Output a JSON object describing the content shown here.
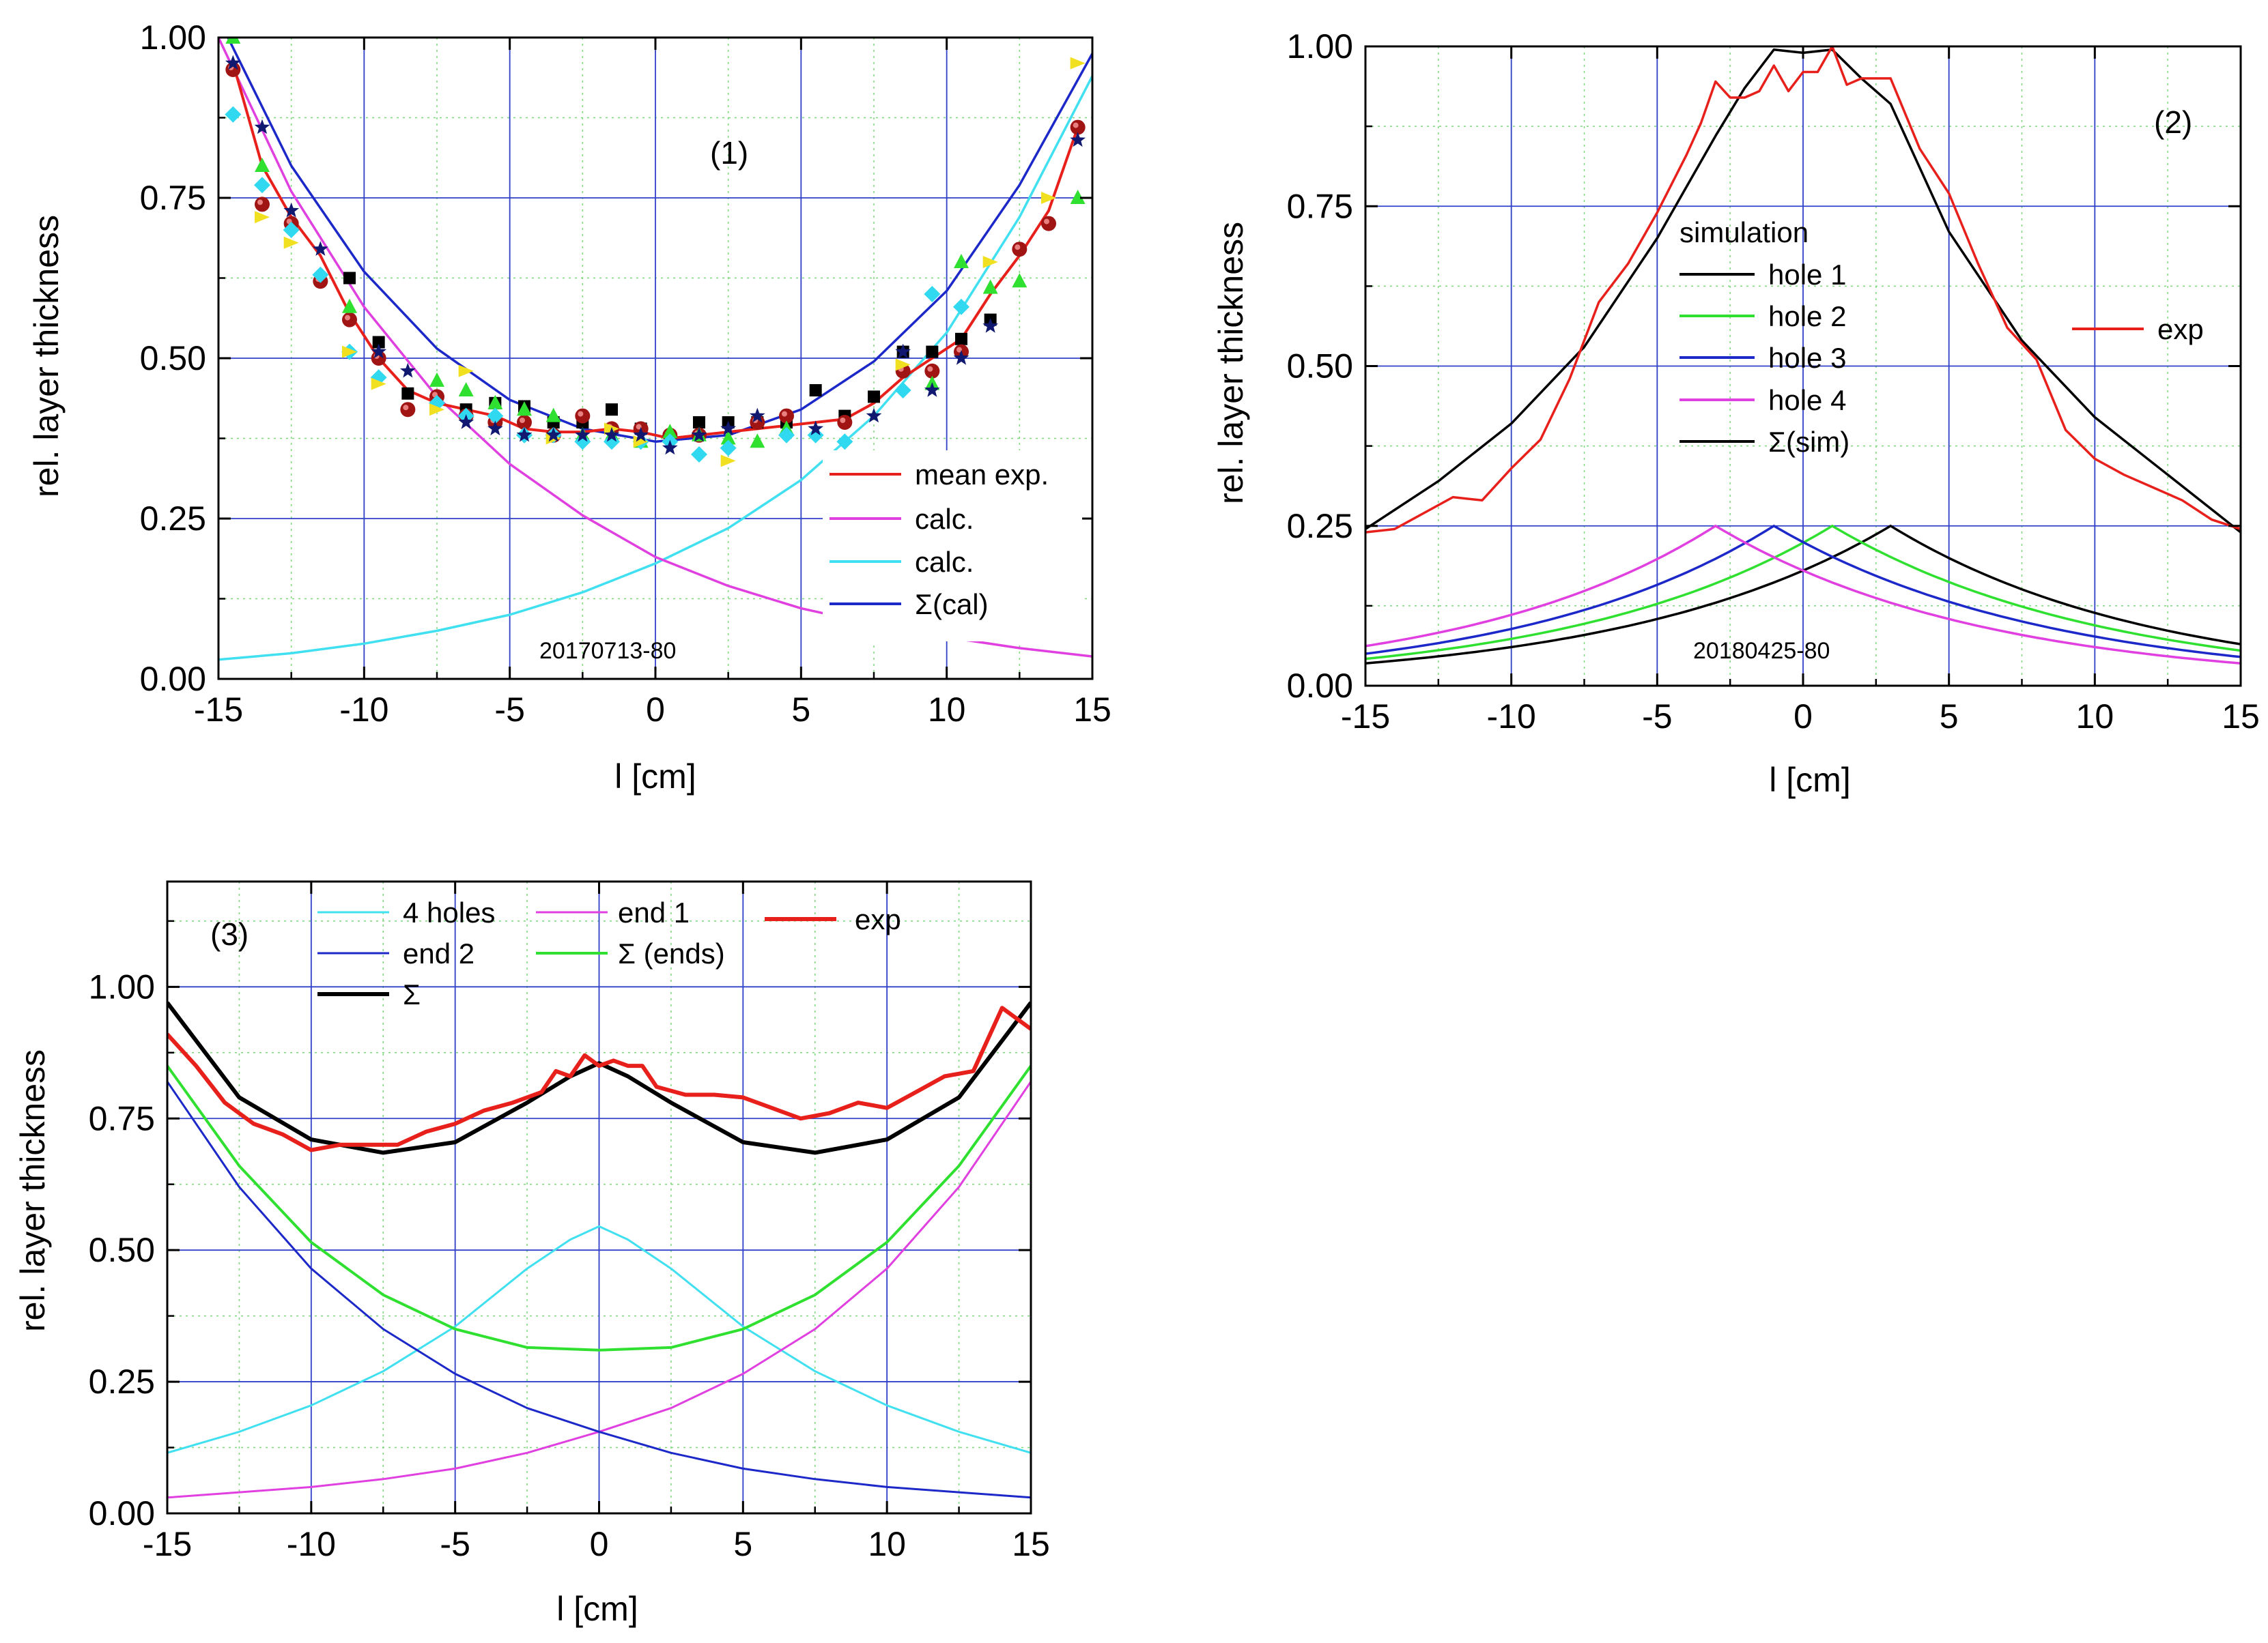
{
  "chart_data": [
    {
      "type": "scatter",
      "panel_label": "(1)",
      "xlabel": "l [cm]",
      "ylabel": "rel. layer thickness",
      "xlim": [
        -15,
        15
      ],
      "ylim": [
        0,
        1
      ],
      "xticks": [
        "-15",
        "-10",
        "-5",
        "0",
        "5",
        "10",
        "15"
      ],
      "yticks": [
        "0.00",
        "0.25",
        "0.50",
        "0.75",
        "1.00"
      ],
      "annotation": "20170713-80",
      "colors": {
        "mean": "#e8201c",
        "calc1": "#e040e0",
        "calc2": "#40e0f0",
        "sum": "#1c28c8"
      },
      "series": [
        {
          "name": "mean exp.",
          "style": "line",
          "color": "#e8201c",
          "x": [
            -14.5,
            -13.5,
            -12.5,
            -11.5,
            -10.5,
            -9.5,
            -8.5,
            -7.5,
            -6.5,
            -5.5,
            -4.5,
            -3.5,
            -2.5,
            -1.5,
            -0.5,
            0.5,
            1.5,
            2.5,
            3.5,
            4.5,
            5.5,
            6.5,
            7.5,
            8.5,
            9.5,
            10.5,
            11.5,
            12.5,
            13.5,
            14.5
          ],
          "y": [
            0.96,
            0.8,
            0.72,
            0.66,
            0.57,
            0.5,
            0.45,
            0.43,
            0.42,
            0.41,
            0.39,
            0.385,
            0.385,
            0.39,
            0.385,
            0.375,
            0.38,
            0.385,
            0.39,
            0.395,
            0.4,
            0.405,
            0.43,
            0.47,
            0.5,
            0.53,
            0.6,
            0.66,
            0.73,
            0.86
          ]
        },
        {
          "name": "calc.",
          "style": "line",
          "color": "#e040e0",
          "x": [
            -15,
            -12.5,
            -10,
            -7.5,
            -5,
            -2.5,
            0,
            2.5,
            5,
            7.5,
            10,
            12.5,
            15
          ],
          "y": [
            1.0,
            0.76,
            0.58,
            0.44,
            0.335,
            0.255,
            0.19,
            0.145,
            0.11,
            0.085,
            0.065,
            0.048,
            0.035
          ]
        },
        {
          "name": "calc.",
          "style": "line",
          "color": "#40e0f0",
          "x": [
            -15,
            -12.5,
            -10,
            -7.5,
            -5,
            -2.5,
            0,
            2.5,
            5,
            7.5,
            10,
            12.5,
            15
          ],
          "y": [
            0.03,
            0.04,
            0.055,
            0.075,
            0.1,
            0.135,
            0.18,
            0.235,
            0.31,
            0.41,
            0.54,
            0.72,
            0.94
          ]
        },
        {
          "name": "Σ(cal)",
          "style": "line",
          "color": "#1c28c8",
          "x": [
            -15,
            -12.5,
            -10,
            -7.5,
            -5,
            -2.5,
            0,
            2.5,
            5,
            7.5,
            10,
            12.5,
            15
          ],
          "y": [
            1.03,
            0.8,
            0.635,
            0.515,
            0.435,
            0.39,
            0.37,
            0.38,
            0.42,
            0.495,
            0.605,
            0.77,
            0.975
          ]
        },
        {
          "name": "data-squares",
          "style": "square",
          "color": "#000000",
          "x": [
            -10.5,
            -9.5,
            -8.5,
            -6.5,
            -5.5,
            -4.5,
            -3.5,
            -2.5,
            -1.5,
            -0.5,
            1.5,
            2.5,
            3.5,
            4.5,
            5.5,
            6.5,
            7.5,
            8.5,
            9.5,
            10.5,
            11.5
          ],
          "y": [
            0.625,
            0.525,
            0.445,
            0.42,
            0.43,
            0.425,
            0.4,
            0.4,
            0.42,
            0.39,
            0.4,
            0.4,
            0.4,
            0.4,
            0.45,
            0.41,
            0.44,
            0.51,
            0.51,
            0.53,
            0.56
          ]
        },
        {
          "name": "data-spheres",
          "style": "ball",
          "color": "#a01414",
          "x": [
            -14.5,
            -13.5,
            -12.5,
            -11.5,
            -10.5,
            -9.5,
            -8.5,
            -7.5,
            -6.5,
            -5.5,
            -4.5,
            -3.5,
            -2.5,
            -1.5,
            -0.5,
            0.5,
            1.5,
            3.5,
            4.5,
            6.5,
            8.5,
            9.5,
            10.5,
            12.5,
            13.5,
            14.5
          ],
          "y": [
            0.95,
            0.74,
            0.71,
            0.62,
            0.56,
            0.5,
            0.42,
            0.44,
            0.41,
            0.4,
            0.4,
            0.38,
            0.41,
            0.39,
            0.39,
            0.38,
            0.38,
            0.4,
            0.41,
            0.4,
            0.48,
            0.48,
            0.51,
            0.67,
            0.71,
            0.86
          ]
        },
        {
          "name": "data-triangles",
          "style": "triangle",
          "color": "#30e030",
          "x": [
            -14.5,
            -13.5,
            -10.5,
            -7.5,
            -6.5,
            -5.5,
            -4.5,
            -3.5,
            -2.5,
            -1.5,
            -0.5,
            0.5,
            1.5,
            2.5,
            3.5,
            4.5,
            9.5,
            10.5,
            11.5,
            12.5,
            14.5
          ],
          "y": [
            1.0,
            0.8,
            0.58,
            0.465,
            0.45,
            0.43,
            0.42,
            0.41,
            0.38,
            0.38,
            0.37,
            0.385,
            0.38,
            0.375,
            0.37,
            0.39,
            0.46,
            0.65,
            0.61,
            0.62,
            0.75
          ]
        },
        {
          "name": "data-diamonds",
          "style": "diamond",
          "color": "#30d8f0",
          "x": [
            -14.5,
            -13.5,
            -12.5,
            -11.5,
            -10.5,
            -9.5,
            -7.5,
            -6.5,
            -5.5,
            -4.5,
            -3.5,
            -2.5,
            -1.5,
            -0.5,
            0.5,
            1.5,
            2.5,
            4.5,
            5.5,
            6.5,
            8.5,
            9.5,
            10.5
          ],
          "y": [
            0.88,
            0.77,
            0.7,
            0.63,
            0.51,
            0.47,
            0.43,
            0.41,
            0.41,
            0.38,
            0.38,
            0.37,
            0.37,
            0.37,
            0.37,
            0.35,
            0.36,
            0.38,
            0.38,
            0.37,
            0.45,
            0.6,
            0.58
          ]
        },
        {
          "name": "data-yellow-triangles",
          "style": "ytriangle",
          "color": "#f0e020",
          "x": [
            -13.5,
            -12.5,
            -10.5,
            -9.5,
            -7.5,
            -6.5,
            -3.5,
            -1.5,
            -0.5,
            2.5,
            8.5,
            11.5,
            13.5,
            14.5
          ],
          "y": [
            0.72,
            0.68,
            0.51,
            0.46,
            0.42,
            0.48,
            0.375,
            0.39,
            0.37,
            0.34,
            0.49,
            0.65,
            0.75,
            0.96
          ]
        },
        {
          "name": "data-stars",
          "style": "star",
          "color": "#101870",
          "x": [
            -14.5,
            -13.5,
            -12.5,
            -11.5,
            -9.5,
            -8.5,
            -6.5,
            -5.5,
            -4.5,
            -3.5,
            -2.5,
            -1.5,
            -0.5,
            0.5,
            1.5,
            2.5,
            3.5,
            5.5,
            7.5,
            8.5,
            9.5,
            10.5,
            11.5,
            14.5
          ],
          "y": [
            0.96,
            0.86,
            0.73,
            0.67,
            0.51,
            0.48,
            0.4,
            0.39,
            0.38,
            0.38,
            0.38,
            0.38,
            0.38,
            0.36,
            0.38,
            0.39,
            0.41,
            0.39,
            0.41,
            0.51,
            0.45,
            0.5,
            0.55,
            0.84
          ]
        }
      ],
      "legend": [
        {
          "label": "mean exp.",
          "color": "#e8201c"
        },
        {
          "label": "calc.",
          "color": "#e040e0"
        },
        {
          "label": "calc.",
          "color": "#40e0f0"
        },
        {
          "label": "Σ(cal)",
          "color": "#1c28c8"
        }
      ]
    },
    {
      "type": "line",
      "panel_label": "(2)",
      "xlabel": "l [cm]",
      "ylabel": "rel. layer thickness",
      "xlim": [
        -15,
        15
      ],
      "ylim": [
        0,
        1
      ],
      "xticks": [
        "-15",
        "-10",
        "-5",
        "0",
        "5",
        "10",
        "15"
      ],
      "yticks": [
        "0.00",
        "0.25",
        "0.50",
        "0.75",
        "1.00"
      ],
      "annotation": "20180425-80",
      "legend_title": "simulation",
      "series": [
        {
          "name": "hole 1",
          "color": "#000000",
          "peak_x": 3,
          "peak_y": 0.25,
          "ends": [
            0.035,
            0.065
          ]
        },
        {
          "name": "hole 2",
          "color": "#30e030",
          "peak_x": 1,
          "peak_y": 0.25,
          "ends": [
            0.042,
            0.055
          ]
        },
        {
          "name": "hole 3",
          "color": "#1c28c8",
          "peak_x": -1,
          "peak_y": 0.25,
          "ends": [
            0.05,
            0.045
          ]
        },
        {
          "name": "hole 4",
          "color": "#e040e0",
          "peak_x": -3,
          "peak_y": 0.25,
          "ends": [
            0.062,
            0.035
          ]
        },
        {
          "name": "Σ(sim)",
          "color": "#000000",
          "x": [
            -15,
            -12.5,
            -10,
            -7.5,
            -5,
            -3,
            -2,
            -1,
            0,
            1,
            2,
            3,
            5,
            7.5,
            10,
            12.5,
            15
          ],
          "y": [
            0.245,
            0.32,
            0.41,
            0.53,
            0.7,
            0.86,
            0.935,
            0.995,
            0.99,
            0.995,
            0.95,
            0.91,
            0.71,
            0.54,
            0.42,
            0.33,
            0.24
          ]
        },
        {
          "name": "exp",
          "color": "#e8201c",
          "x": [
            -15,
            -14,
            -13,
            -12,
            -11,
            -10,
            -9,
            -8,
            -7.5,
            -7,
            -6,
            -5,
            -4,
            -3.5,
            -3,
            -2.5,
            -2,
            -1.5,
            -1,
            -0.5,
            0,
            0.5,
            1,
            1.5,
            2,
            2.5,
            3,
            4,
            5,
            6,
            7,
            8,
            9,
            10,
            11,
            12,
            13,
            14,
            15
          ],
          "y": [
            0.24,
            0.245,
            0.27,
            0.295,
            0.29,
            0.34,
            0.385,
            0.48,
            0.54,
            0.6,
            0.66,
            0.74,
            0.83,
            0.88,
            0.945,
            0.92,
            0.92,
            0.93,
            0.97,
            0.93,
            0.96,
            0.96,
            1.0,
            0.94,
            0.95,
            0.95,
            0.95,
            0.84,
            0.77,
            0.66,
            0.56,
            0.51,
            0.4,
            0.355,
            0.33,
            0.31,
            0.29,
            0.26,
            0.245
          ]
        }
      ],
      "legend": [
        {
          "label": "hole 1",
          "color": "#000000"
        },
        {
          "label": "hole 2",
          "color": "#30e030"
        },
        {
          "label": "hole 3",
          "color": "#1c28c8"
        },
        {
          "label": "hole 4",
          "color": "#e040e0"
        },
        {
          "label": "Σ(sim)",
          "color": "#000000"
        }
      ],
      "legend_exp": {
        "label": "exp",
        "color": "#e8201c"
      }
    },
    {
      "type": "line",
      "panel_label": "(3)",
      "xlabel": "l [cm]",
      "ylabel": "rel. layer thickness",
      "xlim": [
        -15,
        15
      ],
      "ylim": [
        0,
        1.2
      ],
      "xticks": [
        "-15",
        "-10",
        "-5",
        "0",
        "5",
        "10",
        "15"
      ],
      "yticks": [
        "0.00",
        "0.25",
        "0.50",
        "0.75",
        "1.00"
      ],
      "series": [
        {
          "name": "4 holes",
          "color": "#40e0f0",
          "x": [
            -15,
            -12.5,
            -10,
            -7.5,
            -5,
            -2.5,
            -1,
            0,
            1,
            2.5,
            5,
            7.5,
            10,
            12.5,
            15
          ],
          "y": [
            0.115,
            0.155,
            0.205,
            0.27,
            0.355,
            0.465,
            0.52,
            0.545,
            0.52,
            0.465,
            0.355,
            0.27,
            0.205,
            0.155,
            0.115
          ]
        },
        {
          "name": "end 1",
          "color": "#e040e0",
          "x": [
            -15,
            -12.5,
            -10,
            -7.5,
            -5,
            -2.5,
            0,
            2.5,
            5,
            7.5,
            10,
            12.5,
            15
          ],
          "y": [
            0.03,
            0.04,
            0.05,
            0.065,
            0.085,
            0.115,
            0.155,
            0.2,
            0.265,
            0.35,
            0.465,
            0.62,
            0.82
          ]
        },
        {
          "name": "end 2",
          "color": "#1c28c8",
          "x": [
            -15,
            -12.5,
            -10,
            -7.5,
            -5,
            -2.5,
            0,
            2.5,
            5,
            7.5,
            10,
            12.5,
            15
          ],
          "y": [
            0.82,
            0.62,
            0.465,
            0.35,
            0.265,
            0.2,
            0.155,
            0.115,
            0.085,
            0.065,
            0.05,
            0.04,
            0.03
          ]
        },
        {
          "name": "Σ (ends)",
          "color": "#30e030",
          "x": [
            -15,
            -12.5,
            -10,
            -7.5,
            -5,
            -2.5,
            0,
            2.5,
            5,
            7.5,
            10,
            12.5,
            15
          ],
          "y": [
            0.85,
            0.66,
            0.515,
            0.415,
            0.35,
            0.315,
            0.31,
            0.315,
            0.35,
            0.415,
            0.515,
            0.66,
            0.85
          ]
        },
        {
          "name": "Σ",
          "color": "#000000",
          "x": [
            -15,
            -12.5,
            -10,
            -7.5,
            -5,
            -2.5,
            -1,
            0,
            1,
            2.5,
            5,
            7.5,
            10,
            12.5,
            15
          ],
          "y": [
            0.97,
            0.79,
            0.71,
            0.685,
            0.705,
            0.78,
            0.83,
            0.855,
            0.83,
            0.78,
            0.705,
            0.685,
            0.71,
            0.79,
            0.97
          ]
        },
        {
          "name": "exp",
          "color": "#e8201c",
          "x": [
            -15,
            -14,
            -13,
            -12,
            -11,
            -10,
            -9,
            -8,
            -7,
            -6,
            -5,
            -4,
            -3,
            -2,
            -1.5,
            -1,
            -0.5,
            0,
            0.5,
            1,
            1.5,
            2,
            3,
            4,
            5,
            6,
            7,
            8,
            9,
            10,
            11,
            12,
            13,
            14,
            15
          ],
          "y": [
            0.91,
            0.85,
            0.78,
            0.74,
            0.72,
            0.69,
            0.7,
            0.7,
            0.7,
            0.725,
            0.74,
            0.765,
            0.78,
            0.8,
            0.84,
            0.83,
            0.87,
            0.85,
            0.86,
            0.85,
            0.85,
            0.81,
            0.795,
            0.795,
            0.79,
            0.77,
            0.75,
            0.76,
            0.78,
            0.77,
            0.8,
            0.83,
            0.84,
            0.96,
            0.92
          ]
        }
      ],
      "legend": [
        {
          "label": "4 holes",
          "color": "#40e0f0"
        },
        {
          "label": "end 1",
          "color": "#e040e0"
        },
        {
          "label": "exp",
          "color": "#e8201c"
        },
        {
          "label": "end 2",
          "color": "#1c28c8"
        },
        {
          "label": "Σ (ends)",
          "color": "#30e030"
        },
        {
          "label": "Σ",
          "color": "#000000"
        }
      ]
    }
  ]
}
